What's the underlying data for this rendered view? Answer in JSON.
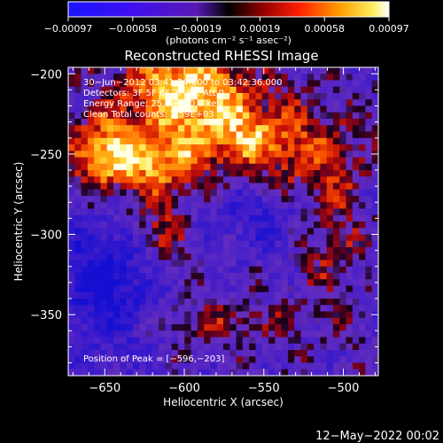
{
  "chart_data": {
    "type": "heatmap",
    "title": "Reconstructed RHESSI Image",
    "xlabel": "Heliocentric X (arcsec)",
    "ylabel": "Heliocentric Y (arcsec)",
    "xlim": [
      -673,
      -478
    ],
    "ylim": [
      -388,
      -196
    ],
    "x_ticks": [
      -650,
      -600,
      -550,
      -500
    ],
    "x_tick_labels": [
      "−650",
      "−600",
      "−550",
      "−500"
    ],
    "y_ticks": [
      -200,
      -250,
      -300,
      -350
    ],
    "y_tick_labels": [
      "−200",
      "−250",
      "−300",
      "−350"
    ],
    "colorbar": {
      "range": [
        -0.00097,
        0.00097
      ],
      "ticks": [
        -0.00097,
        -0.00058,
        -0.00019,
        0.00019,
        0.00058,
        0.00097
      ],
      "tick_labels": [
        "−0.00097",
        "−0.00058",
        "−0.00019",
        "0.00019",
        "0.00058",
        "0.00097"
      ],
      "unit_label": "(photons cm⁻² s⁻¹ asec⁻²)"
    },
    "annotations": [
      "30−Jun−2012 03:41:24.000 to 03:42:36.000",
      "Detectors: 3F 5F 6F 7F 8F, Att 0",
      "Energy Range: 25.0 − 50.0 keV",
      "Clean    Total counts: 2.59E+03"
    ],
    "peak_label": "Position of Peak = [−596,−203]",
    "peak": [
      -596,
      -203
    ],
    "grid_cols": 48,
    "grid_rows": 48,
    "grid": false,
    "colors": {
      "background": "#000000",
      "text": "#ffffff"
    }
  },
  "footer": {
    "date": "12−May−2022 00:02"
  }
}
